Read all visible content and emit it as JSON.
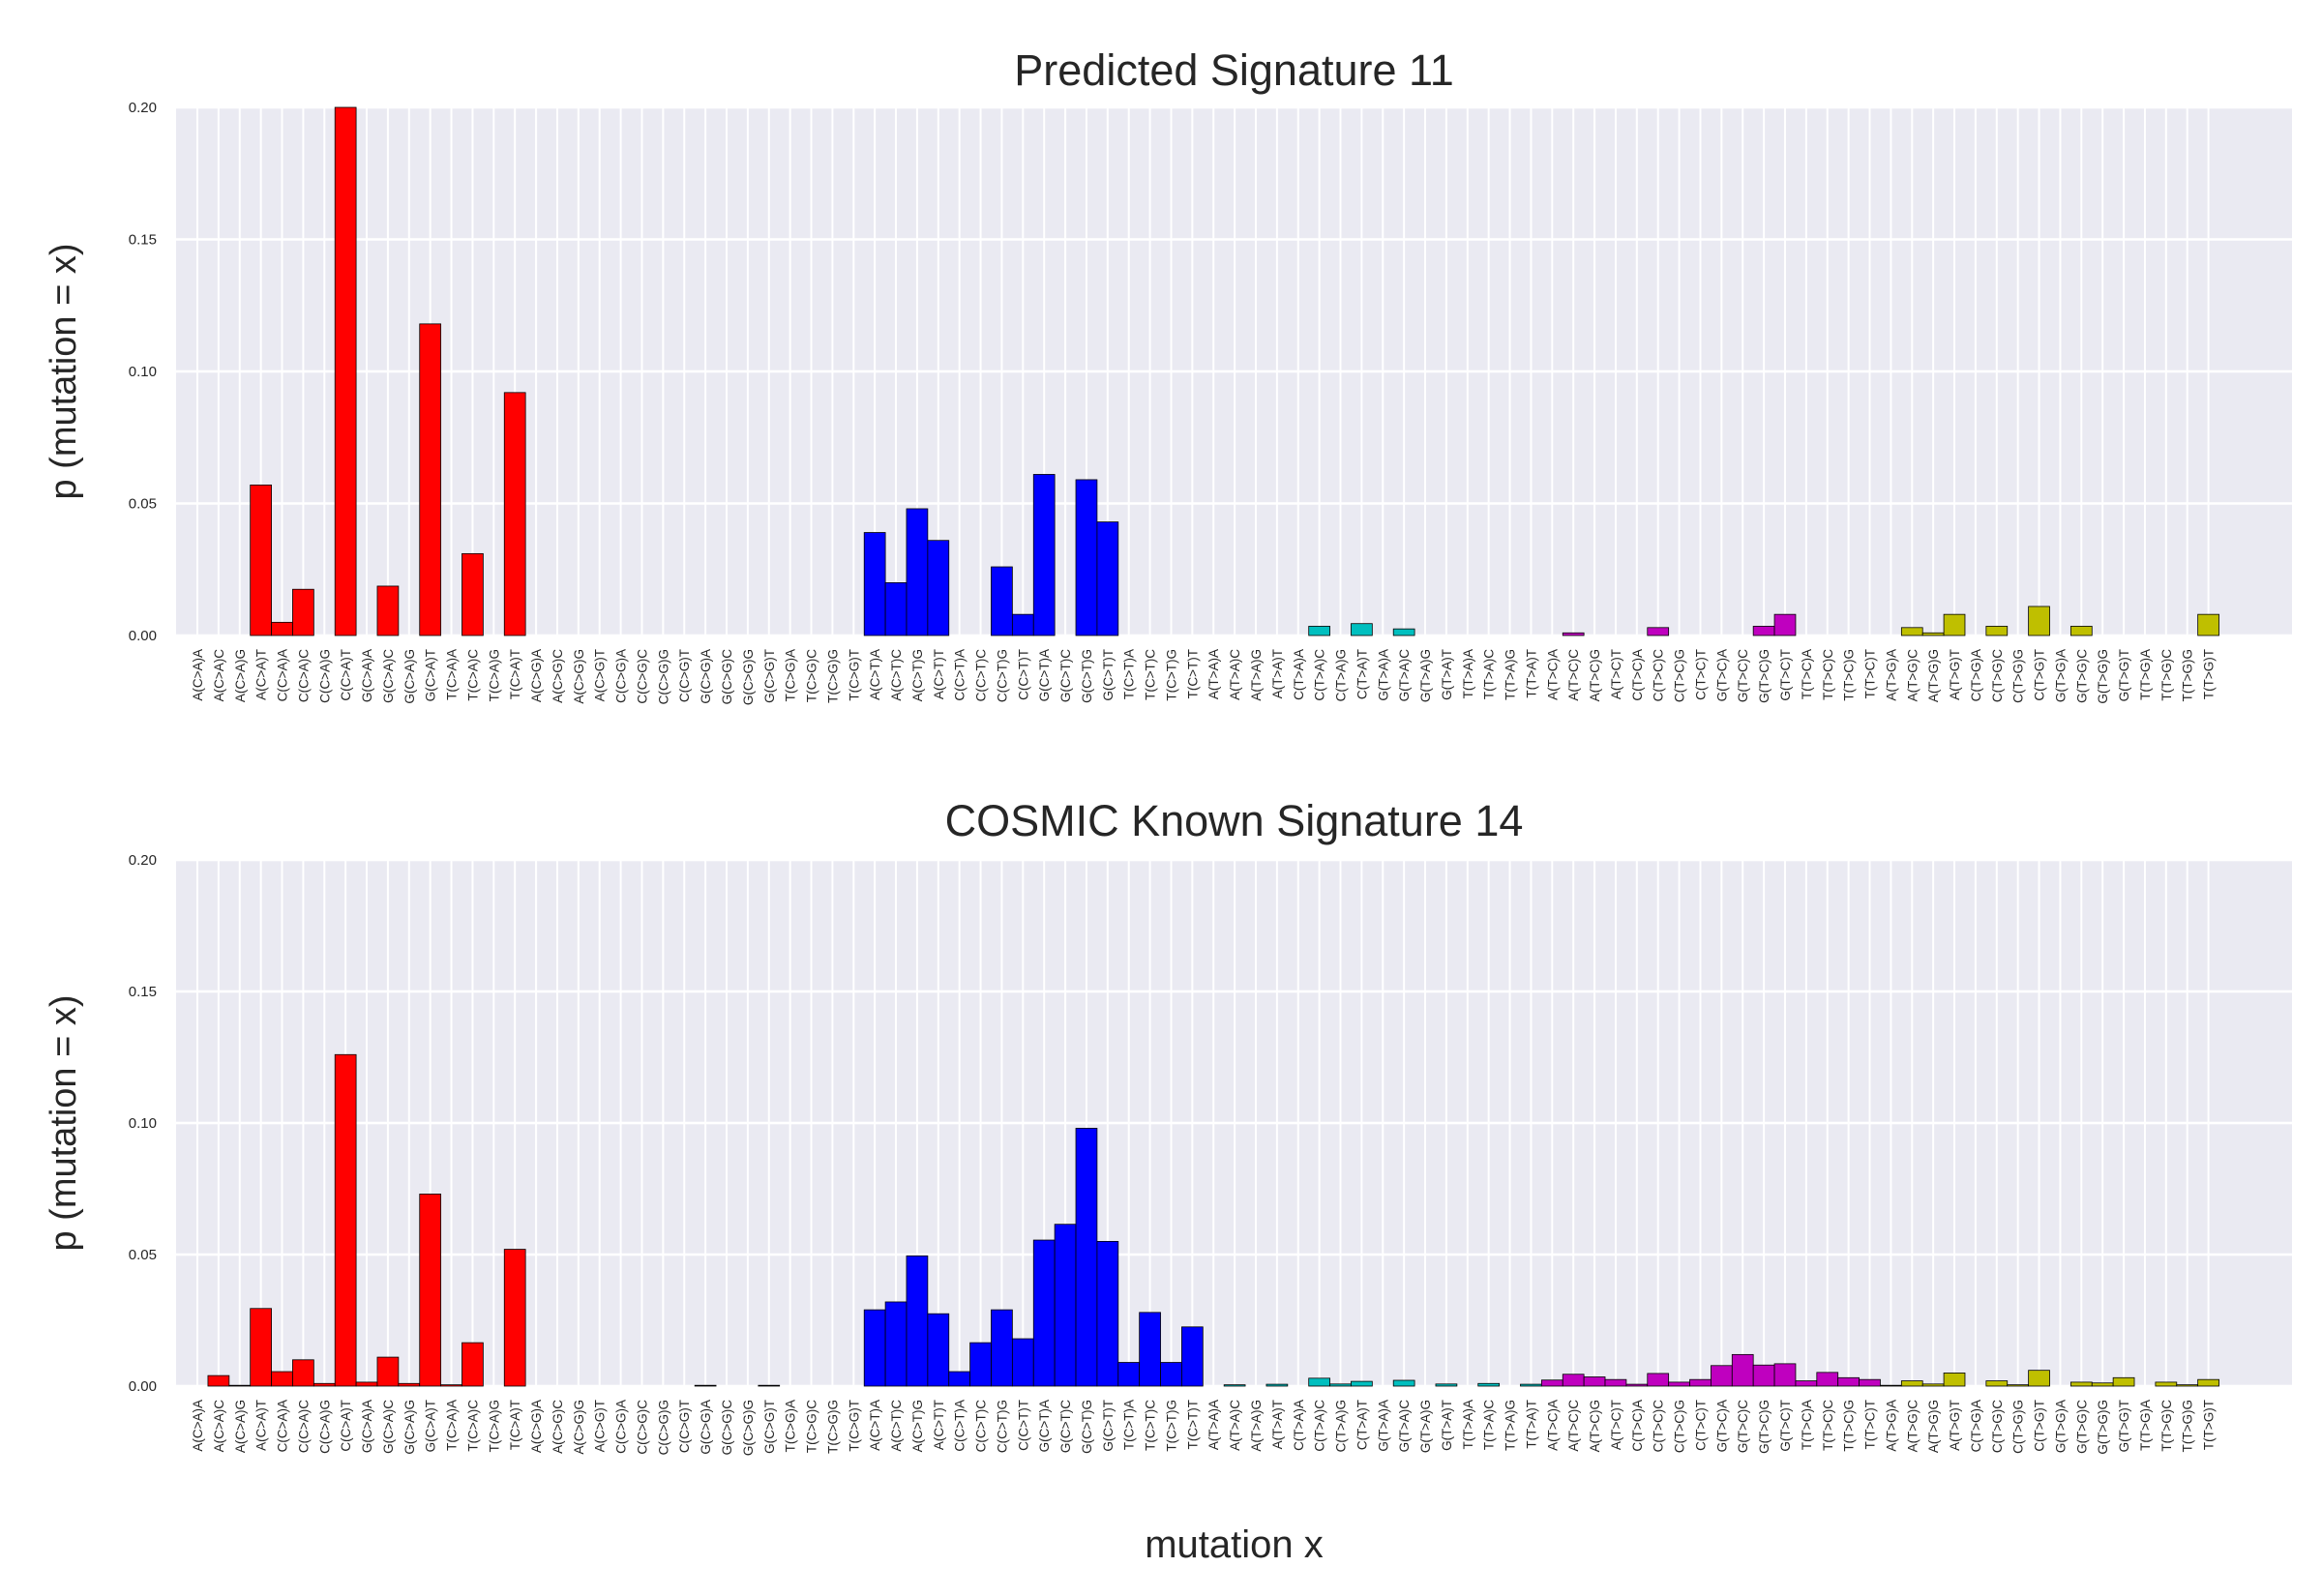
{
  "chart_data": [
    {
      "type": "bar",
      "title": "Predicted Signature 11",
      "ylabel": "p (mutation = x)",
      "categories": [
        "A(C>A)A",
        "A(C>A)C",
        "A(C>A)G",
        "A(C>A)T",
        "C(C>A)A",
        "C(C>A)C",
        "C(C>A)G",
        "C(C>A)T",
        "G(C>A)A",
        "G(C>A)C",
        "G(C>A)G",
        "G(C>A)T",
        "T(C>A)A",
        "T(C>A)C",
        "T(C>A)G",
        "T(C>A)T",
        "A(C>G)A",
        "A(C>G)C",
        "A(C>G)G",
        "A(C>G)T",
        "C(C>G)A",
        "C(C>G)C",
        "C(C>G)G",
        "C(C>G)T",
        "G(C>G)A",
        "G(C>G)C",
        "G(C>G)G",
        "G(C>G)T",
        "T(C>G)A",
        "T(C>G)C",
        "T(C>G)G",
        "T(C>G)T",
        "A(C>T)A",
        "A(C>T)C",
        "A(C>T)G",
        "A(C>T)T",
        "C(C>T)A",
        "C(C>T)C",
        "C(C>T)G",
        "C(C>T)T",
        "G(C>T)A",
        "G(C>T)C",
        "G(C>T)G",
        "G(C>T)T",
        "T(C>T)A",
        "T(C>T)C",
        "T(C>T)G",
        "T(C>T)T",
        "A(T>A)A",
        "A(T>A)C",
        "A(T>A)G",
        "A(T>A)T",
        "C(T>A)A",
        "C(T>A)C",
        "C(T>A)G",
        "C(T>A)T",
        "G(T>A)A",
        "G(T>A)C",
        "G(T>A)G",
        "G(T>A)T",
        "T(T>A)A",
        "T(T>A)C",
        "T(T>A)G",
        "T(T>A)T",
        "A(T>C)A",
        "A(T>C)C",
        "A(T>C)G",
        "A(T>C)T",
        "C(T>C)A",
        "C(T>C)C",
        "C(T>C)G",
        "C(T>C)T",
        "G(T>C)A",
        "G(T>C)C",
        "G(T>C)G",
        "G(T>C)T",
        "T(T>C)A",
        "T(T>C)C",
        "T(T>C)G",
        "T(T>C)T",
        "A(T>G)A",
        "A(T>G)C",
        "A(T>G)G",
        "A(T>G)T",
        "C(T>G)A",
        "C(T>G)C",
        "C(T>G)G",
        "C(T>G)T",
        "G(T>G)A",
        "G(T>G)C",
        "G(T>G)G",
        "G(T>G)T",
        "T(T>G)A",
        "T(T>G)C",
        "T(T>G)G",
        "T(T>G)T"
      ],
      "values": [
        0,
        0,
        0,
        0.057,
        0.005,
        0.0175,
        0,
        0.2,
        0,
        0.0187,
        0,
        0.118,
        0,
        0.031,
        0,
        0.092,
        0,
        0,
        0,
        0,
        0,
        0,
        0,
        0,
        0,
        0,
        0,
        0,
        0,
        0,
        0,
        0,
        0.039,
        0.02,
        0.048,
        0.036,
        0,
        0,
        0.026,
        0.008,
        0.061,
        0,
        0.059,
        0.043,
        0,
        0,
        0,
        0,
        0,
        0,
        0,
        0,
        0,
        0.0035,
        0,
        0.0045,
        0,
        0.0025,
        0,
        0,
        0,
        0,
        0,
        0,
        0,
        0.001,
        0,
        0,
        0,
        0.003,
        0,
        0,
        0,
        0,
        0.0035,
        0.008,
        0,
        0,
        0,
        0,
        0,
        0.003,
        0.001,
        0.008,
        0,
        0.0035,
        0,
        0.011,
        0,
        0.0035,
        0,
        0,
        0,
        0,
        0,
        0.008
      ],
      "colors": [
        "#ff0000",
        "#000000",
        "#0000ff",
        "#00bfbf",
        "#bf00bf",
        "#bfbf00"
      ],
      "ylim": [
        0,
        0.2
      ],
      "yticks": [
        {
          "value": 0,
          "label": "0.00"
        },
        {
          "value": 0.05,
          "label": "0.05"
        },
        {
          "value": 0.1,
          "label": "0.10"
        },
        {
          "value": 0.15,
          "label": "0.15"
        },
        {
          "value": 0.2,
          "label": "0.20"
        }
      ],
      "grid": true
    },
    {
      "type": "bar",
      "title": "COSMIC Known Signature 14",
      "ylabel": "p (mutation = x)",
      "xlabel": "mutation x",
      "categories": [
        "A(C>A)A",
        "A(C>A)C",
        "A(C>A)G",
        "A(C>A)T",
        "C(C>A)A",
        "C(C>A)C",
        "C(C>A)G",
        "C(C>A)T",
        "G(C>A)A",
        "G(C>A)C",
        "G(C>A)G",
        "G(C>A)T",
        "T(C>A)A",
        "T(C>A)C",
        "T(C>A)G",
        "T(C>A)T",
        "A(C>G)A",
        "A(C>G)C",
        "A(C>G)G",
        "A(C>G)T",
        "C(C>G)A",
        "C(C>G)C",
        "C(C>G)G",
        "C(C>G)T",
        "G(C>G)A",
        "G(C>G)C",
        "G(C>G)G",
        "G(C>G)T",
        "T(C>G)A",
        "T(C>G)C",
        "T(C>G)G",
        "T(C>G)T",
        "A(C>T)A",
        "A(C>T)C",
        "A(C>T)G",
        "A(C>T)T",
        "C(C>T)A",
        "C(C>T)C",
        "C(C>T)G",
        "C(C>T)T",
        "G(C>T)A",
        "G(C>T)C",
        "G(C>T)G",
        "G(C>T)T",
        "T(C>T)A",
        "T(C>T)C",
        "T(C>T)G",
        "T(C>T)T",
        "A(T>A)A",
        "A(T>A)C",
        "A(T>A)G",
        "A(T>A)T",
        "C(T>A)A",
        "C(T>A)C",
        "C(T>A)G",
        "C(T>A)T",
        "G(T>A)A",
        "G(T>A)C",
        "G(T>A)G",
        "G(T>A)T",
        "T(T>A)A",
        "T(T>A)C",
        "T(T>A)G",
        "T(T>A)T",
        "A(T>C)A",
        "A(T>C)C",
        "A(T>C)G",
        "A(T>C)T",
        "C(T>C)A",
        "C(T>C)C",
        "C(T>C)G",
        "C(T>C)T",
        "G(T>C)A",
        "G(T>C)C",
        "G(T>C)G",
        "G(T>C)T",
        "T(T>C)A",
        "T(T>C)C",
        "T(T>C)G",
        "T(T>C)T",
        "A(T>G)A",
        "A(T>G)C",
        "A(T>G)G",
        "A(T>G)T",
        "C(T>G)A",
        "C(T>G)C",
        "C(T>G)G",
        "C(T>G)T",
        "G(T>G)A",
        "G(T>G)C",
        "G(T>G)G",
        "G(T>G)T",
        "T(T>G)A",
        "T(T>G)C",
        "T(T>G)G",
        "T(T>G)T"
      ],
      "values": [
        0,
        0.004,
        0.0003,
        0.0295,
        0.0055,
        0.01,
        0.001,
        0.126,
        0.0015,
        0.011,
        0.001,
        0.073,
        0.0005,
        0.0165,
        0,
        0.052,
        0,
        0,
        0,
        0,
        0,
        0,
        0,
        0,
        0.0003,
        0,
        0,
        0.0003,
        0,
        0,
        0,
        0,
        0.029,
        0.032,
        0.0495,
        0.0275,
        0.0055,
        0.0165,
        0.029,
        0.018,
        0.0555,
        0.0615,
        0.098,
        0.055,
        0.009,
        0.028,
        0.009,
        0.0225,
        0,
        0.0005,
        0,
        0.0007,
        0,
        0.003,
        0.0008,
        0.0018,
        0,
        0.0022,
        0,
        0.0008,
        0,
        0.001,
        0,
        0.0007,
        0.0023,
        0.0045,
        0.0035,
        0.0025,
        0.0007,
        0.0048,
        0.0015,
        0.0025,
        0.0078,
        0.012,
        0.008,
        0.0085,
        0.002,
        0.0052,
        0.0032,
        0.0025,
        0.0003,
        0.002,
        0.0008,
        0.005,
        0,
        0.002,
        0.0005,
        0.006,
        0,
        0.0015,
        0.0012,
        0.0032,
        0,
        0.0015,
        0.0005,
        0.0025
      ],
      "colors": [
        "#ff0000",
        "#000000",
        "#0000ff",
        "#00bfbf",
        "#bf00bf",
        "#bfbf00"
      ],
      "ylim": [
        0,
        0.2
      ],
      "yticks": [
        {
          "value": 0,
          "label": "0.00"
        },
        {
          "value": 0.05,
          "label": "0.05"
        },
        {
          "value": 0.1,
          "label": "0.10"
        },
        {
          "value": 0.15,
          "label": "0.15"
        },
        {
          "value": 0.2,
          "label": "0.20"
        }
      ],
      "grid": true
    }
  ]
}
